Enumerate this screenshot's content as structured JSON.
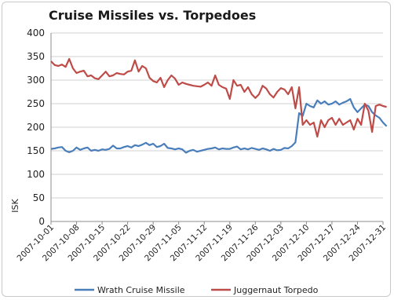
{
  "chart_data": {
    "type": "line",
    "title": "Cruise Missiles vs. Torpedoes",
    "ylabel": "ISK",
    "xlabel": "",
    "ylim": [
      0,
      400
    ],
    "yticks": [
      0,
      50,
      100,
      150,
      200,
      250,
      300,
      350,
      400
    ],
    "grid": "horizontal",
    "legend": "bottom",
    "x_start": "2007-10-01",
    "x_end": "2007-12-31",
    "xtick_labels": [
      "2007-10-01",
      "2007-10-08",
      "2007-10-15",
      "2007-10-22",
      "2007-10-29",
      "2007-11-05",
      "2007-11-12",
      "2007-11-19",
      "2007-11-26",
      "2007-12-03",
      "2007-12-10",
      "2007-12-17",
      "2007-12-24",
      "2007-12-31"
    ],
    "series": [
      {
        "name": "Wrath Cruise Missile",
        "color": "#4a7ebb",
        "values": [
          154,
          155,
          157,
          158,
          150,
          147,
          150,
          157,
          152,
          155,
          157,
          150,
          152,
          150,
          153,
          152,
          154,
          161,
          155,
          155,
          158,
          160,
          157,
          162,
          160,
          163,
          167,
          162,
          165,
          158,
          160,
          165,
          156,
          155,
          153,
          155,
          153,
          146,
          150,
          152,
          148,
          150,
          152,
          154,
          155,
          157,
          153,
          155,
          154,
          154,
          157,
          159,
          153,
          155,
          153,
          156,
          154,
          152,
          155,
          153,
          150,
          154,
          151,
          152,
          156,
          155,
          160,
          168,
          230,
          224,
          250,
          245,
          242,
          257,
          250,
          255,
          248,
          250,
          255,
          248,
          252,
          255,
          260,
          242,
          232,
          240,
          248,
          245,
          232,
          225,
          220,
          210,
          202
        ]
      },
      {
        "name": "Juggernaut Torpedo",
        "color": "#be4b48",
        "values": [
          340,
          332,
          330,
          333,
          328,
          345,
          325,
          315,
          318,
          320,
          308,
          310,
          304,
          302,
          310,
          318,
          308,
          310,
          315,
          313,
          312,
          318,
          320,
          342,
          318,
          330,
          325,
          305,
          298,
          295,
          305,
          285,
          300,
          310,
          303,
          290,
          295,
          292,
          290,
          288,
          287,
          286,
          290,
          295,
          288,
          310,
          290,
          285,
          282,
          260,
          300,
          288,
          290,
          275,
          285,
          270,
          262,
          270,
          288,
          282,
          270,
          263,
          275,
          283,
          280,
          270,
          285,
          240,
          285,
          205,
          215,
          205,
          210,
          180,
          215,
          200,
          215,
          220,
          205,
          218,
          205,
          210,
          215,
          195,
          218,
          205,
          250,
          235,
          190,
          245,
          248,
          245,
          243
        ]
      }
    ]
  }
}
